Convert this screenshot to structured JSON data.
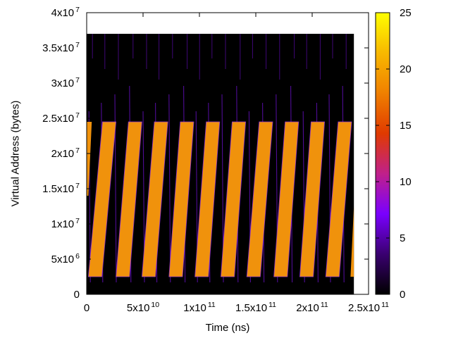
{
  "chart_data": {
    "type": "heatmap",
    "xlabel": "Time (ns)",
    "ylabel": "Virtual Address (bytes)",
    "xlim": [
      0,
      250000000000
    ],
    "ylim": [
      0,
      40000000
    ],
    "data_extent": {
      "x": [
        0,
        237000000000
      ],
      "y": [
        0,
        37000000
      ]
    },
    "x_ticks": [
      {
        "value": 0,
        "mantissa": "0",
        "exp": ""
      },
      {
        "value": 50000000000,
        "mantissa": "5x10",
        "exp": "10"
      },
      {
        "value": 100000000000,
        "mantissa": "1x10",
        "exp": "11"
      },
      {
        "value": 150000000000,
        "mantissa": "1.5x10",
        "exp": "11"
      },
      {
        "value": 200000000000,
        "mantissa": "2x10",
        "exp": "11"
      },
      {
        "value": 250000000000,
        "mantissa": "2.5x10",
        "exp": "11"
      }
    ],
    "y_ticks": [
      {
        "value": 0,
        "mantissa": "0",
        "exp": ""
      },
      {
        "value": 5000000,
        "mantissa": "5x10",
        "exp": "6"
      },
      {
        "value": 10000000,
        "mantissa": "1x10",
        "exp": "7"
      },
      {
        "value": 15000000,
        "mantissa": "1.5x10",
        "exp": "7"
      },
      {
        "value": 20000000,
        "mantissa": "2x10",
        "exp": "7"
      },
      {
        "value": 25000000,
        "mantissa": "2.5x10",
        "exp": "7"
      },
      {
        "value": 30000000,
        "mantissa": "3x10",
        "exp": "7"
      },
      {
        "value": 35000000,
        "mantissa": "3.5x10",
        "exp": "7"
      },
      {
        "value": 40000000,
        "mantissa": "4x10",
        "exp": "7"
      }
    ],
    "colorbar": {
      "range": [
        0,
        25
      ],
      "ticks": [
        0,
        5,
        10,
        15,
        20,
        25
      ],
      "palette": [
        "#000000",
        "#3a0070",
        "#7a00ff",
        "#c0208a",
        "#e03a00",
        "#f08000",
        "#f8b800",
        "#ffff00"
      ]
    },
    "background_value": 0,
    "band_value": 19,
    "band_color": "#f0920c",
    "bands": [
      {
        "t_start": 1500000000,
        "t_end": 14000000000,
        "y_low": 2500000,
        "y_high": 24500000
      },
      {
        "t_start": 26000000000,
        "t_end": 37000000000,
        "y_low": 2500000,
        "y_high": 24500000
      },
      {
        "t_start": 49000000000,
        "t_end": 60000000000,
        "y_low": 2500000,
        "y_high": 24500000
      },
      {
        "t_start": 73000000000,
        "t_end": 83000000000,
        "y_low": 2500000,
        "y_high": 24500000
      },
      {
        "t_start": 96000000000,
        "t_end": 106000000000,
        "y_low": 2500000,
        "y_high": 24500000
      },
      {
        "t_start": 119000000000,
        "t_end": 129000000000,
        "y_low": 2500000,
        "y_high": 24500000
      },
      {
        "t_start": 142000000000,
        "t_end": 153000000000,
        "y_low": 2500000,
        "y_high": 24500000
      },
      {
        "t_start": 166000000000,
        "t_end": 176000000000,
        "y_low": 2500000,
        "y_high": 24500000
      },
      {
        "t_start": 189000000000,
        "t_end": 199000000000,
        "y_low": 2500000,
        "y_high": 24500000
      },
      {
        "t_start": 212000000000,
        "t_end": 223000000000,
        "y_low": 2500000,
        "y_high": 24500000
      }
    ],
    "band_width": 12000000000,
    "edge_bands": [
      {
        "y_low": 14000000,
        "y_high": 24500000,
        "t_start": 0,
        "t_end": 1500000000
      },
      {
        "y_low": 2500000,
        "y_high": 12500000,
        "t_start": 236000000000,
        "t_end": 237000000000
      }
    ],
    "spikes_t": [
      2000000000,
      13000000000,
      25000000000,
      38000000000,
      50000000000,
      61000000000,
      73000000000,
      86000000000,
      97000000000,
      108000000000,
      120000000000,
      133000000000,
      144000000000,
      156000000000,
      168000000000,
      181000000000,
      192000000000,
      204000000000,
      215000000000,
      227000000000
    ]
  }
}
